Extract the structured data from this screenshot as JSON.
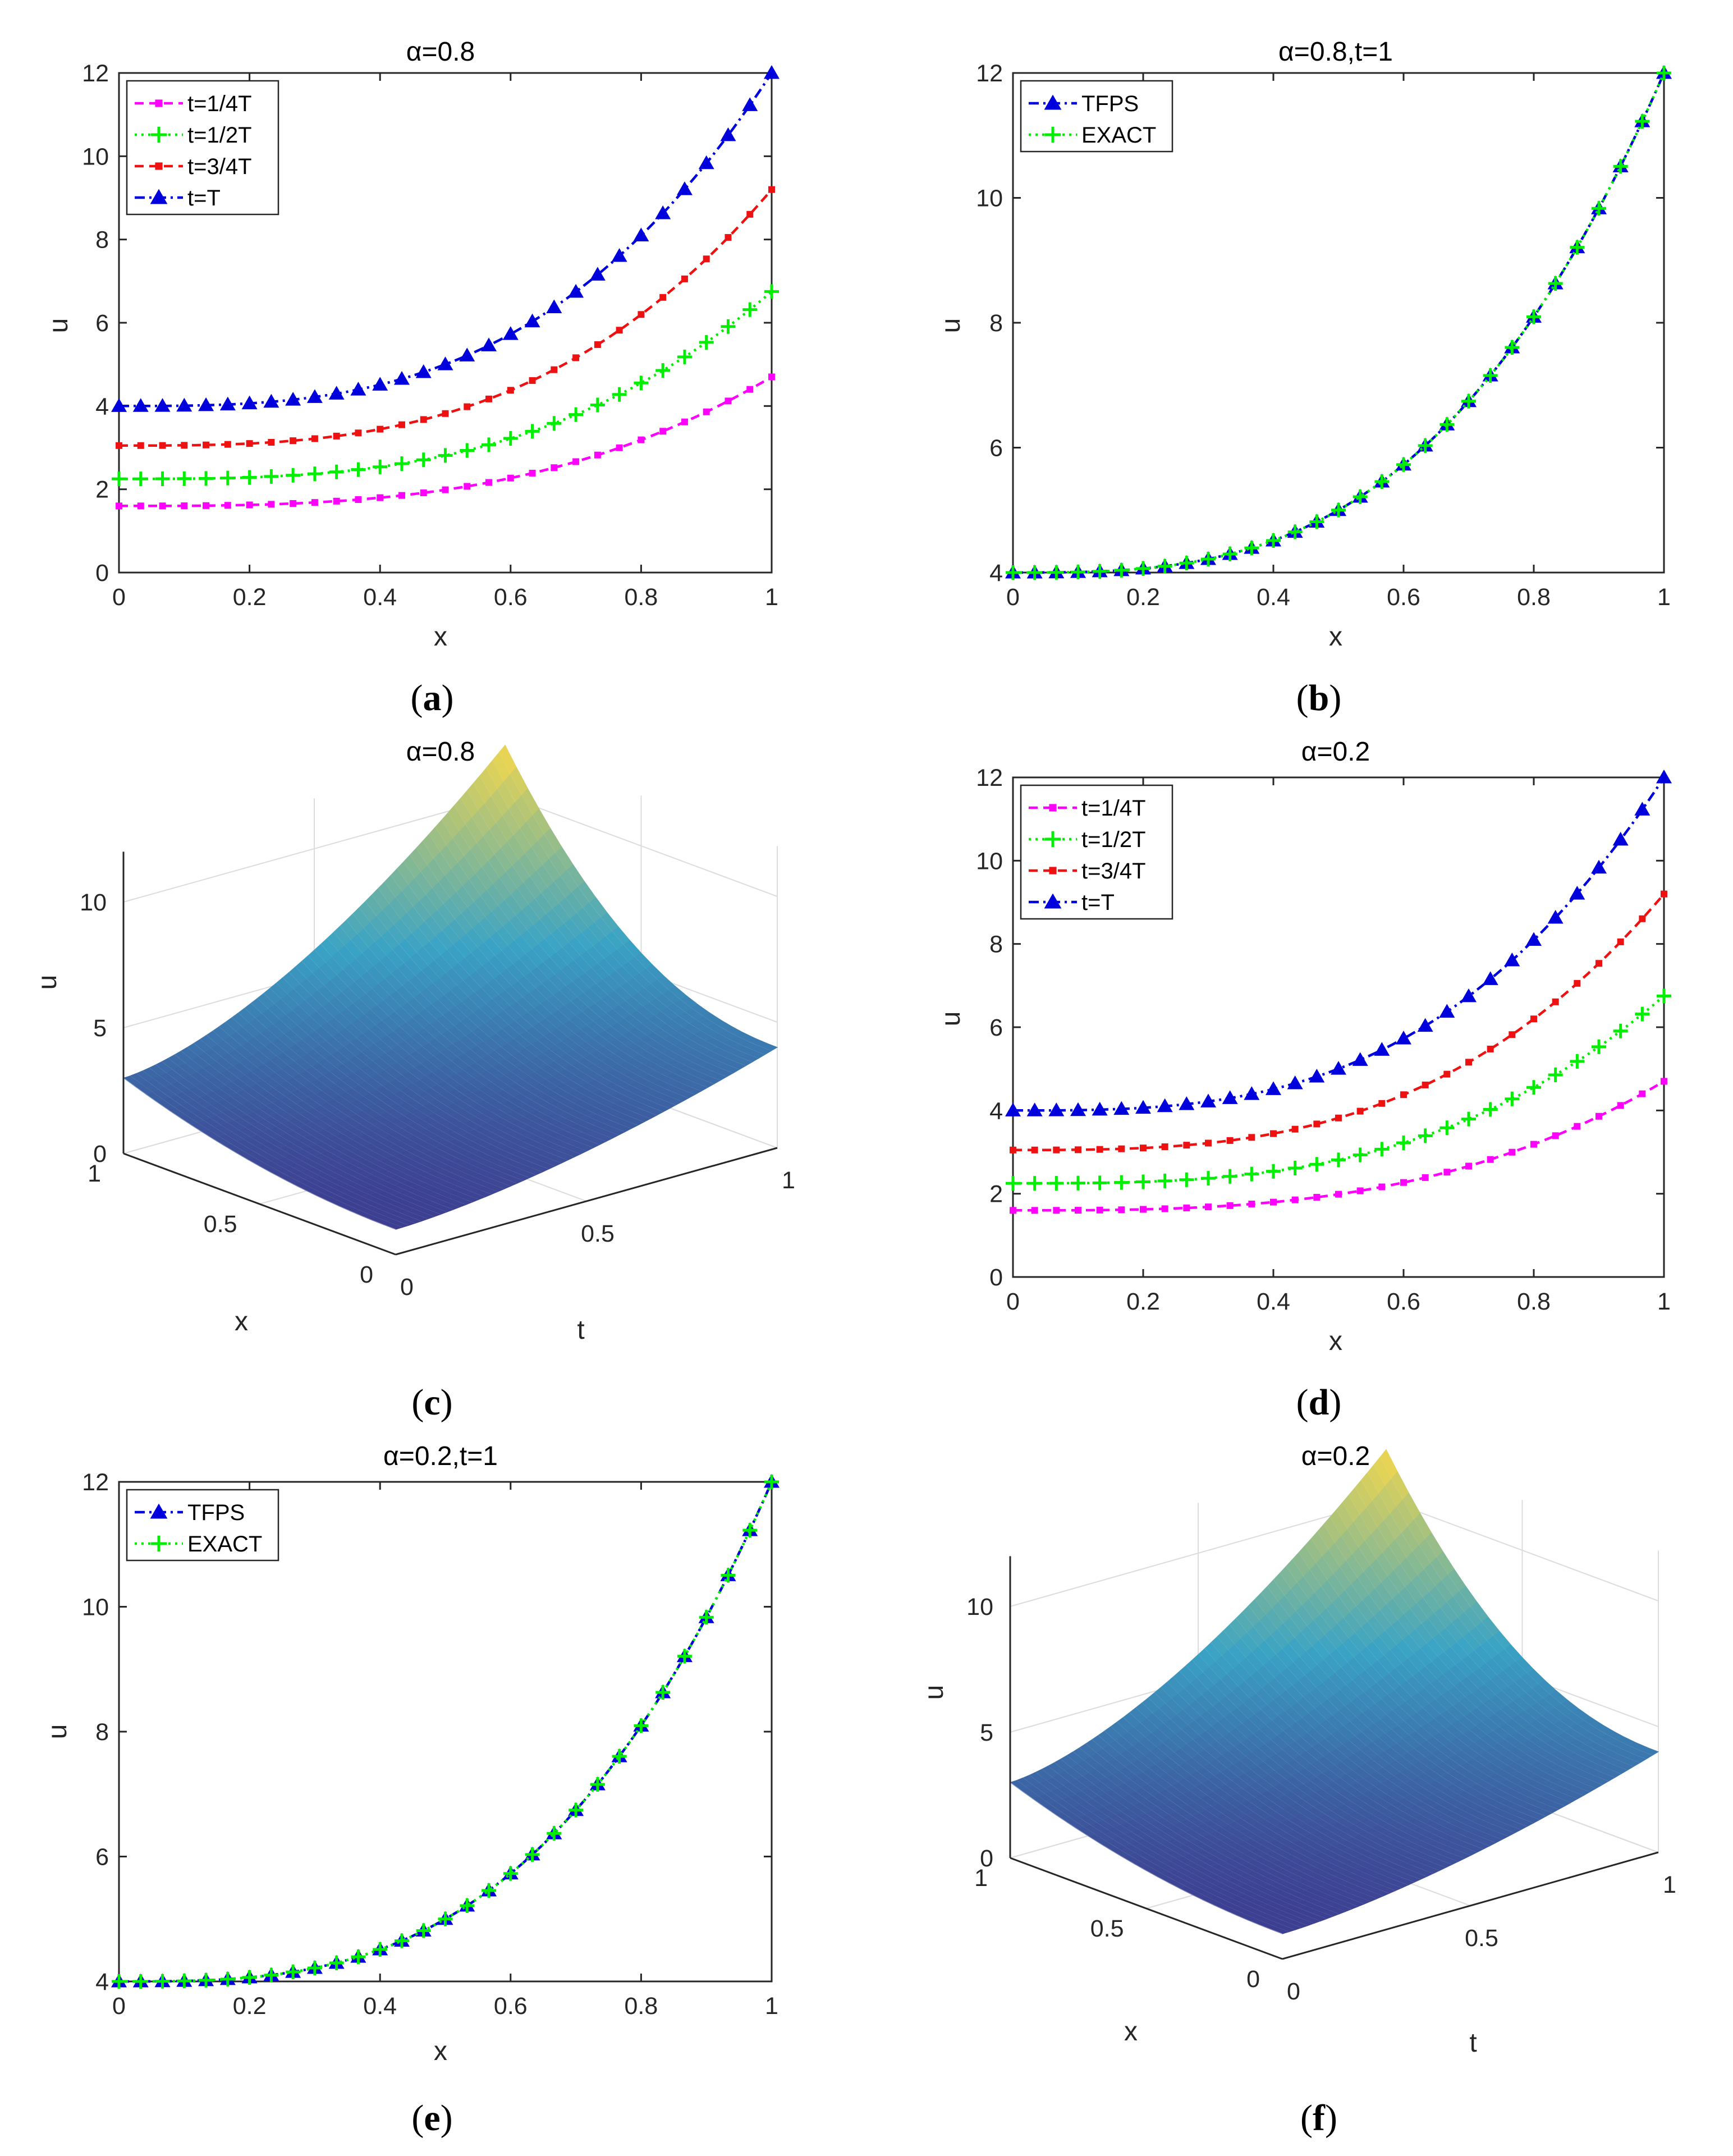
{
  "figure": {
    "panels": [
      {
        "id": "a",
        "label_open": "(",
        "label_letter": "a",
        "label_close": ")"
      },
      {
        "id": "b",
        "label_open": "(",
        "label_letter": "b",
        "label_close": ")"
      },
      {
        "id": "c",
        "label_open": "(",
        "label_letter": "c",
        "label_close": ")"
      },
      {
        "id": "d",
        "label_open": "(",
        "label_letter": "d",
        "label_close": ")"
      },
      {
        "id": "e",
        "label_open": "(",
        "label_letter": "e",
        "label_close": ")"
      },
      {
        "id": "f",
        "label_open": "(",
        "label_letter": "f",
        "label_close": ")"
      }
    ]
  },
  "colors": {
    "magenta": "#ff00ff",
    "green": "#00ee00",
    "red": "#ee1111",
    "blue": "#0000dd",
    "axis": "#262626",
    "grid": "#dcdcdc",
    "surface_low": "#3e2a86",
    "surface_mid": "#3aa3c5",
    "surface_high": "#f7d84a"
  },
  "chart_data": [
    {
      "id": "a",
      "type": "line",
      "title": "α=0.8",
      "xlabel": "x",
      "ylabel": "u",
      "xlim": [
        0,
        1
      ],
      "ylim": [
        0,
        12
      ],
      "xticks": [
        0,
        0.2,
        0.4,
        0.6,
        0.8,
        1
      ],
      "yticks": [
        0,
        2,
        4,
        6,
        8,
        10,
        12
      ],
      "legend_position": "top-left",
      "markers_per_series": 31,
      "series": [
        {
          "name": "t=1/4T",
          "u0": 1.6,
          "u1": 4.7,
          "color": "magenta",
          "marker": "square",
          "dash": "dashed"
        },
        {
          "name": "t=1/2T",
          "u0": 2.25,
          "u1": 6.75,
          "color": "green",
          "marker": "plus",
          "dash": "dotted"
        },
        {
          "name": "t=3/4T",
          "u0": 3.05,
          "u1": 9.2,
          "color": "red",
          "marker": "square",
          "dash": "dashed"
        },
        {
          "name": "t=T",
          "u0": 4.0,
          "u1": 12.0,
          "color": "blue",
          "marker": "triangle",
          "dash": "dashdot"
        }
      ]
    },
    {
      "id": "b",
      "type": "line",
      "title": "α=0.8,t=1",
      "xlabel": "x",
      "ylabel": "u",
      "xlim": [
        0,
        1
      ],
      "ylim": [
        4,
        12
      ],
      "xticks": [
        0,
        0.2,
        0.4,
        0.6,
        0.8,
        1
      ],
      "yticks": [
        4,
        6,
        8,
        10,
        12
      ],
      "legend_position": "top-left",
      "markers_per_series": 31,
      "series": [
        {
          "name": "TFPS",
          "u0": 4.0,
          "u1": 12.0,
          "color": "blue",
          "marker": "triangle",
          "dash": "dashdot"
        },
        {
          "name": "EXACT",
          "u0": 4.0,
          "u1": 12.0,
          "color": "green",
          "marker": "plus",
          "dash": "dotted"
        }
      ]
    },
    {
      "id": "c",
      "type": "surface",
      "title": "α=0.8",
      "xlabel": "x",
      "ylabel": "t",
      "zlabel": "u",
      "x_range": [
        0,
        1
      ],
      "t_range": [
        0,
        1
      ],
      "zlim": [
        0,
        12
      ],
      "x_ticks": [
        "0",
        "0.5",
        "1"
      ],
      "t_ticks": [
        "0",
        "0.5",
        "1"
      ],
      "z_ticks": [
        "0",
        "5",
        "10"
      ],
      "corner_values": {
        "x0_t0": 1.0,
        "x0_t1": 4.0,
        "x1_t0": 3.0,
        "x1_t1": 12.0
      }
    },
    {
      "id": "d",
      "type": "line",
      "title": "α=0.2",
      "xlabel": "x",
      "ylabel": "u",
      "xlim": [
        0,
        1
      ],
      "ylim": [
        0,
        12
      ],
      "xticks": [
        0,
        0.2,
        0.4,
        0.6,
        0.8,
        1
      ],
      "yticks": [
        0,
        2,
        4,
        6,
        8,
        10,
        12
      ],
      "legend_position": "top-left",
      "markers_per_series": 31,
      "series": [
        {
          "name": "t=1/4T",
          "u0": 1.6,
          "u1": 4.7,
          "color": "magenta",
          "marker": "square",
          "dash": "dashed"
        },
        {
          "name": "t=1/2T",
          "u0": 2.25,
          "u1": 6.75,
          "color": "green",
          "marker": "plus",
          "dash": "dotted"
        },
        {
          "name": "t=3/4T",
          "u0": 3.05,
          "u1": 9.2,
          "color": "red",
          "marker": "square",
          "dash": "dashed"
        },
        {
          "name": "t=T",
          "u0": 4.0,
          "u1": 12.0,
          "color": "blue",
          "marker": "triangle",
          "dash": "dashdot"
        }
      ]
    },
    {
      "id": "e",
      "type": "line",
      "title": "α=0.2,t=1",
      "xlabel": "x",
      "ylabel": "u",
      "xlim": [
        0,
        1
      ],
      "ylim": [
        4,
        12
      ],
      "xticks": [
        0,
        0.2,
        0.4,
        0.6,
        0.8,
        1
      ],
      "yticks": [
        4,
        6,
        8,
        10,
        12
      ],
      "legend_position": "top-left",
      "markers_per_series": 31,
      "series": [
        {
          "name": "TFPS",
          "u0": 4.0,
          "u1": 12.0,
          "color": "blue",
          "marker": "triangle",
          "dash": "dashdot"
        },
        {
          "name": "EXACT",
          "u0": 4.0,
          "u1": 12.0,
          "color": "green",
          "marker": "plus",
          "dash": "dotted"
        }
      ]
    },
    {
      "id": "f",
      "type": "surface",
      "title": "α=0.2",
      "xlabel": "x",
      "ylabel": "t",
      "zlabel": "u",
      "x_range": [
        0,
        1
      ],
      "t_range": [
        0,
        1
      ],
      "zlim": [
        0,
        12
      ],
      "x_ticks": [
        "0",
        "0.5",
        "1"
      ],
      "t_ticks": [
        "0",
        "0.5",
        "1"
      ],
      "z_ticks": [
        "0",
        "5",
        "10"
      ],
      "corner_values": {
        "x0_t0": 1.0,
        "x0_t1": 4.0,
        "x1_t0": 3.0,
        "x1_t1": 12.0
      }
    }
  ]
}
